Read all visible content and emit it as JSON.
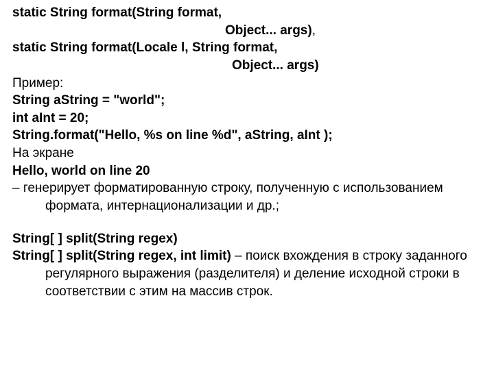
{
  "colors": {
    "background": "#ffffff",
    "text": "#000000"
  },
  "typography": {
    "font_family": "Arial",
    "base_fontsize_pt": 14,
    "line_height": 1.35
  },
  "lines": {
    "l1_bold": "static String format(String format,",
    "l2_bold": "Object... args)",
    "l2_plain": ",",
    "l3_bold": "static String format(Locale l, String format,",
    "l4_bold": "Object... args)",
    "l5": "Пример:",
    "l6_bold": "String aString = \"world\";",
    "l7_bold": "int aInt = 20;",
    "l8_bold": "String.format(\"Hello, %s on line %d\", aString, aInt );",
    "l9": "На экране",
    "l10_bold": "Hello, world on line 20",
    "l11": "– генерирует форматированную строку, полученную с использованием формата, интернационализации и др.;",
    "l12_bold": "String[ ] split(String regex)",
    "l13_bold": "String[ ] split(String regex, int limit) ",
    "l13_plain": "– поиск вхождения в строку заданного регулярного выражения (разделителя) и деление исходной строки в соответствии с этим на массив строк."
  }
}
